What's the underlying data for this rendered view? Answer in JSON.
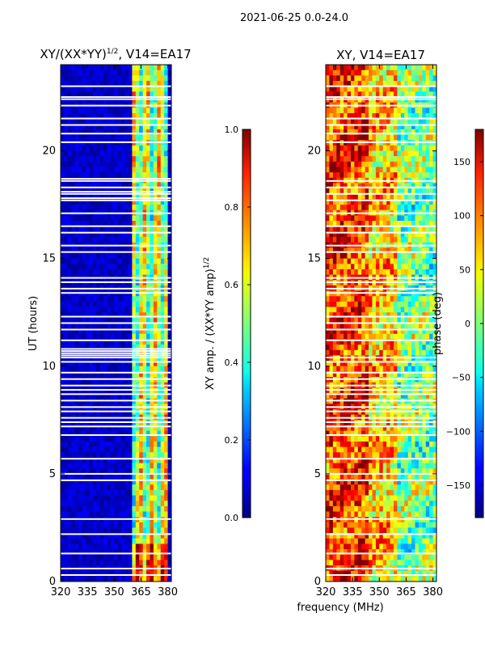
{
  "suptitle": "2021-06-25 0.0-24.0",
  "shared_xlabel": "frequency (MHz)",
  "chart_data": [
    {
      "type": "heatmap",
      "id": "amp",
      "title": "XY/(XX*YY)",
      "title_sup": "1/2",
      "title_suffix": ", V14=EA17",
      "xlabel": "",
      "ylabel": "UT (hours)",
      "xlim": [
        320,
        382
      ],
      "ylim": [
        0,
        24
      ],
      "xticks": [
        "320",
        "335",
        "350",
        "365",
        "380"
      ],
      "xtick_values": [
        320,
        335,
        350,
        365,
        380
      ],
      "yticks": [
        "0",
        "5",
        "10",
        "15",
        "20"
      ],
      "ytick_values": [
        0,
        5,
        10,
        15,
        20
      ],
      "colormap": "jet",
      "colorbar": {
        "label": "XY amp. / (XX*YY amp)",
        "label_sup": "1/2",
        "range": [
          0.0,
          1.0
        ],
        "ticks": [
          "0.0",
          "0.2",
          "0.4",
          "0.6",
          "0.8",
          "1.0"
        ],
        "tick_values": [
          0.0,
          0.2,
          0.4,
          0.6,
          0.8,
          1.0
        ]
      },
      "signal_band_mhz": [
        360,
        380
      ],
      "flagged_ut_hours": [
        0.3,
        0.6,
        1.3,
        2.2,
        2.9,
        4.7,
        5.0,
        5.7,
        6.8,
        7.2,
        7.4,
        7.6,
        7.9,
        8.1,
        8.4,
        8.7,
        8.9,
        9.1,
        9.4,
        9.7,
        10.2,
        10.4,
        10.5,
        10.6,
        10.7,
        10.8,
        11.2,
        11.7,
        12.0,
        12.3,
        13.4,
        13.6,
        13.9,
        14.1,
        15.3,
        15.6,
        16.2,
        16.5,
        17.1,
        17.7,
        17.8,
        18.0,
        18.1,
        18.3,
        18.6,
        18.7,
        20.4,
        20.8,
        21.2,
        21.5,
        22.1,
        22.4,
        22.5,
        23.0
      ]
    },
    {
      "type": "heatmap",
      "id": "phase",
      "title": "XY, V14=EA17",
      "xlabel": "",
      "ylabel": "",
      "xlim": [
        320,
        382
      ],
      "ylim": [
        0,
        24
      ],
      "xticks": [
        "320",
        "335",
        "350",
        "365",
        "380"
      ],
      "xtick_values": [
        320,
        335,
        350,
        365,
        380
      ],
      "yticks": [
        "0",
        "5",
        "10",
        "15",
        "20"
      ],
      "ytick_values": [
        0,
        5,
        10,
        15,
        20
      ],
      "colormap": "jet",
      "colorbar": {
        "label": "phase (deg)",
        "range": [
          -180,
          180
        ],
        "ticks": [
          "−150",
          "−100",
          "−50",
          "0",
          "50",
          "100",
          "150"
        ],
        "tick_values": [
          -150,
          -100,
          -50,
          0,
          50,
          100,
          150
        ]
      },
      "flagged_ut_hours": [
        0.3,
        0.6,
        1.3,
        2.2,
        2.9,
        4.7,
        5.0,
        5.7,
        6.8,
        7.2,
        7.4,
        7.6,
        7.9,
        8.1,
        8.4,
        8.7,
        8.9,
        9.1,
        9.4,
        9.7,
        10.2,
        10.4,
        11.2,
        11.7,
        12.0,
        12.3,
        13.4,
        13.6,
        13.9,
        14.1,
        15.3,
        15.6,
        16.2,
        16.5,
        17.1,
        17.7,
        18.0,
        18.3,
        18.6,
        20.4,
        20.8,
        21.2,
        21.5,
        22.1,
        22.4,
        22.5,
        23.0
      ]
    }
  ]
}
